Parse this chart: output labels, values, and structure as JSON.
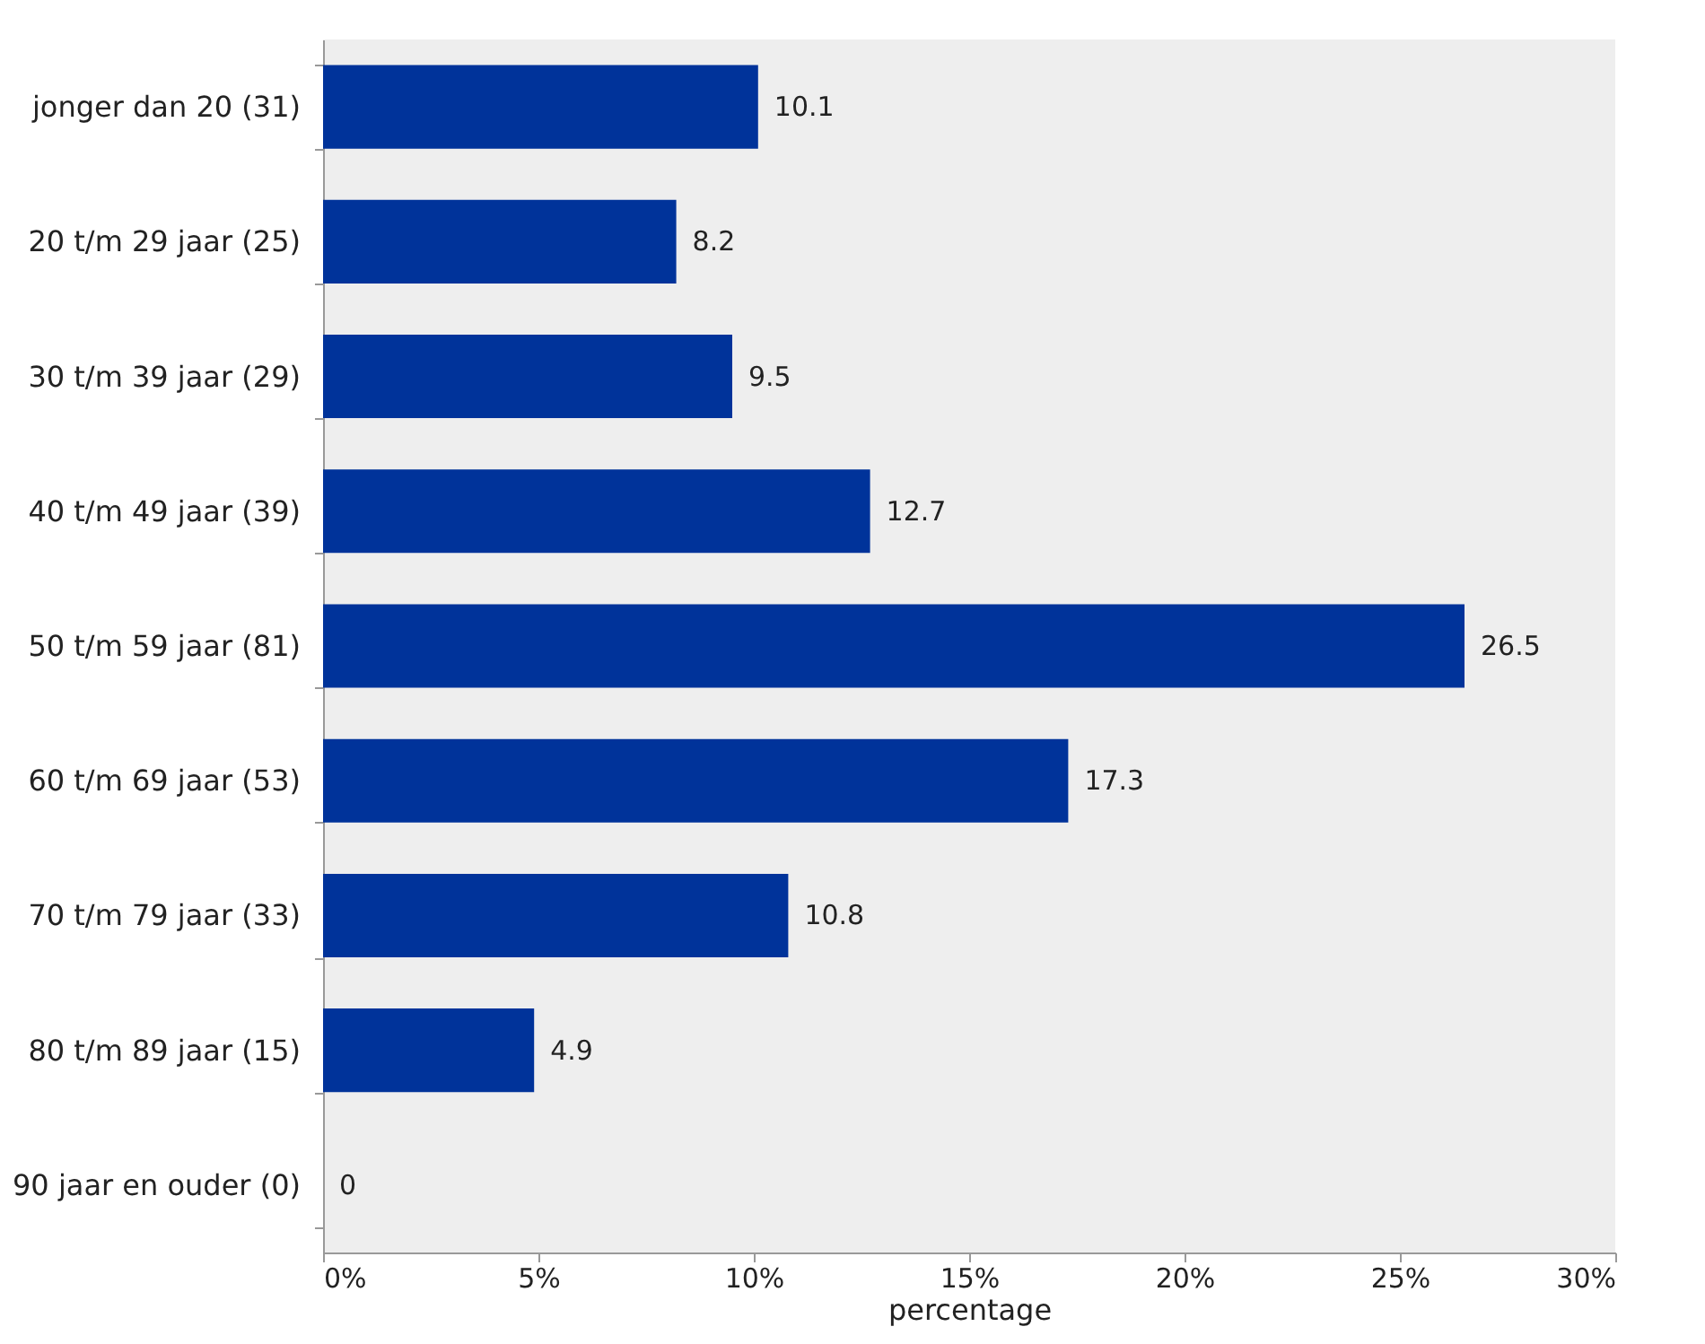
{
  "chart_data": {
    "type": "bar",
    "orientation": "horizontal",
    "xlabel": "percentage",
    "categories": [
      "jonger dan 20 (31)",
      "20 t/m 29 jaar (25)",
      "30 t/m 39 jaar (29)",
      "40 t/m 49 jaar (39)",
      "50 t/m 59 jaar (81)",
      "60 t/m 69 jaar (53)",
      "70 t/m 79 jaar (33)",
      "80 t/m 89 jaar (15)",
      "90 jaar en ouder (0)"
    ],
    "values": [
      10.1,
      8.2,
      9.5,
      12.7,
      26.5,
      17.3,
      10.8,
      4.9,
      0
    ],
    "color": "#00339a",
    "data_labels": true,
    "xlim": [
      0,
      30
    ],
    "xticks": [
      {
        "value": 0,
        "label": "0%"
      },
      {
        "value": 5,
        "label": "5%"
      },
      {
        "value": 10,
        "label": "10%"
      },
      {
        "value": 15,
        "label": "15%"
      },
      {
        "value": 20,
        "label": "20%"
      },
      {
        "value": 25,
        "label": "25%"
      },
      {
        "value": 30,
        "label": "30%"
      }
    ]
  }
}
